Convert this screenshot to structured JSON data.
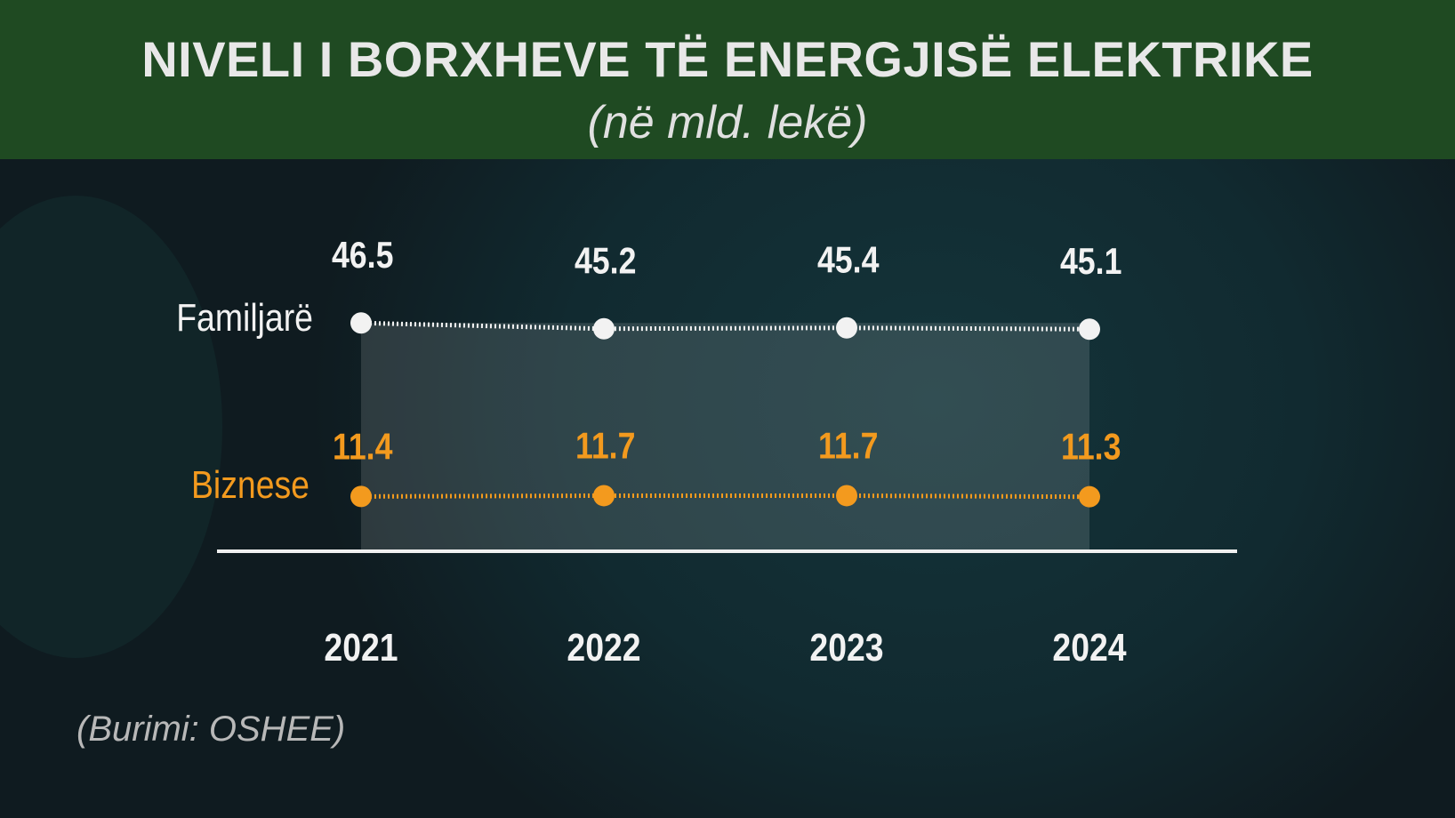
{
  "header": {
    "title": "NIVELI I BORXHEVE TË ENERGJISË ELEKTRIKE",
    "subtitle": "(në mld. lekë)"
  },
  "source": "(Burimi: OSHEE)",
  "colors": {
    "familjare": "#f2f2f2",
    "biznese": "#f39a1e",
    "header_bg": "#1f4a22"
  },
  "chart_data": {
    "type": "line",
    "title": "NIVELI I BORXHEVE TË ENERGJISË ELEKTRIKE",
    "subtitle": "(në mld. lekë)",
    "categories": [
      "2021",
      "2022",
      "2023",
      "2024"
    ],
    "series": [
      {
        "name": "Familjarë",
        "values": [
          46.5,
          45.2,
          45.4,
          45.1
        ],
        "labels": [
          "46.5",
          "45.2",
          "45.4",
          "45.1"
        ]
      },
      {
        "name": "Biznese",
        "values": [
          11.4,
          11.7,
          11.7,
          11.3
        ],
        "labels": [
          "11.4",
          "11.7",
          "11.7",
          "11.3"
        ]
      }
    ],
    "xlabel": "",
    "ylabel": "mld. lekë"
  }
}
